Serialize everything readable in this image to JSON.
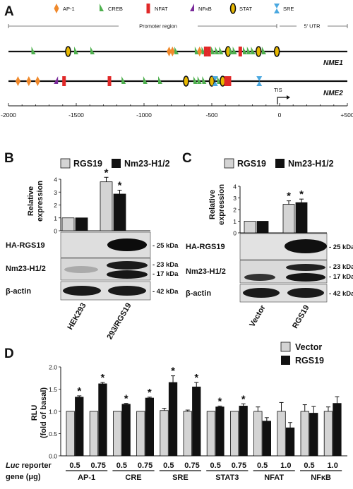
{
  "panelA": {
    "letter": "A",
    "legend": [
      {
        "label": "AP-1",
        "shape": "diamond",
        "color": "#f0892b"
      },
      {
        "label": "CREB",
        "shape": "tri-right",
        "color": "#4fb04f"
      },
      {
        "label": "NFAT",
        "shape": "rect",
        "color": "#e02828"
      },
      {
        "label": "NFκB",
        "shape": "tri-left",
        "color": "#7a2a9a"
      },
      {
        "label": "STAT",
        "shape": "ellipse",
        "color": "#e8b800"
      },
      {
        "label": "SRE",
        "shape": "bowtie",
        "color": "#4aa8e0"
      }
    ],
    "region_promoter": "Promoter region",
    "region_utr": "5' UTR",
    "gene1": "NME1",
    "gene2": "NME2",
    "tis": "TIS",
    "axis_ticks": [
      "-2000",
      "-1500",
      "-1000",
      "-500",
      "0",
      "+500"
    ],
    "nme1_sites": [
      {
        "pos": -1815,
        "type": "tri-right"
      },
      {
        "pos": -1560,
        "type": "ellipse"
      },
      {
        "pos": -1500,
        "type": "tri-right"
      },
      {
        "pos": -1380,
        "type": "tri-right"
      },
      {
        "pos": -815,
        "type": "diamond"
      },
      {
        "pos": -790,
        "type": "diamond"
      },
      {
        "pos": -760,
        "type": "tri-right"
      },
      {
        "pos": -610,
        "type": "tri-right"
      },
      {
        "pos": -590,
        "type": "diamond"
      },
      {
        "pos": -560,
        "type": "tri-right"
      },
      {
        "pos": -545,
        "type": "rect"
      },
      {
        "pos": -520,
        "type": "rect"
      },
      {
        "pos": -490,
        "type": "tri-right"
      },
      {
        "pos": -460,
        "type": "tri-right"
      },
      {
        "pos": -430,
        "type": "tri-right"
      },
      {
        "pos": -380,
        "type": "ellipse"
      },
      {
        "pos": -355,
        "type": "tri-right"
      },
      {
        "pos": -330,
        "type": "tri-right"
      },
      {
        "pos": -290,
        "type": "rect"
      },
      {
        "pos": -255,
        "type": "tri-right"
      },
      {
        "pos": -225,
        "type": "tri-right"
      },
      {
        "pos": -195,
        "type": "tri-right"
      },
      {
        "pos": -155,
        "type": "ellipse"
      },
      {
        "pos": -115,
        "type": "tri-right"
      },
      {
        "pos": -20,
        "type": "ellipse"
      }
    ],
    "nme2_sites": [
      {
        "pos": -1930,
        "type": "diamond"
      },
      {
        "pos": -1850,
        "type": "diamond"
      },
      {
        "pos": -1785,
        "type": "diamond"
      },
      {
        "pos": -1650,
        "type": "tri-left"
      },
      {
        "pos": -1590,
        "type": "rect"
      },
      {
        "pos": -1255,
        "type": "rect"
      },
      {
        "pos": -1150,
        "type": "tri-right"
      },
      {
        "pos": -990,
        "type": "tri-right"
      },
      {
        "pos": -880,
        "type": "tri-right"
      },
      {
        "pos": -690,
        "type": "ellipse"
      },
      {
        "pos": -620,
        "type": "tri-right"
      },
      {
        "pos": -590,
        "type": "tri-right"
      },
      {
        "pos": -555,
        "type": "tri-right"
      },
      {
        "pos": -500,
        "type": "ellipse"
      },
      {
        "pos": -475,
        "type": "bowtie"
      },
      {
        "pos": -445,
        "type": "tri-right"
      },
      {
        "pos": -420,
        "type": "ellipse"
      },
      {
        "pos": -395,
        "type": "rect"
      },
      {
        "pos": -370,
        "type": "rect"
      },
      {
        "pos": -150,
        "type": "bowtie"
      }
    ]
  },
  "panelB": {
    "letter": "B",
    "legend1": "RGS19",
    "legend2": "Nm23-H1/2",
    "ylabel1": "Relative",
    "ylabel2": "expression",
    "yticks": [
      "0",
      "1",
      "2",
      "3",
      "4"
    ],
    "blot1": "HA-RGS19",
    "blot2": "Nm23-H1/2",
    "blot3": "β-actin",
    "kda1": "- 25 kDa",
    "kda2": "- 23 kDa",
    "kda3": "- 17 kDa",
    "kda4": "- 42 kDa",
    "lane1": "HEK293",
    "lane2": "293/RGS19"
  },
  "panelC": {
    "letter": "C",
    "legend1": "RGS19",
    "legend2": "Nm23-H1/2",
    "ylabel1": "Relative",
    "ylabel2": "expression",
    "yticks": [
      "0",
      "1",
      "2",
      "3",
      "4"
    ],
    "blot1": "HA-RGS19",
    "blot2": "Nm23-H1/2",
    "blot3": "β-actin",
    "kda1": "- 25 kDa",
    "kda2": "- 23 kDa",
    "kda3": "- 17 kDa",
    "kda4": "- 42 kDa",
    "lane1": "Vector",
    "lane2": "RGS19"
  },
  "panelD": {
    "letter": "D",
    "legend1": "Vector",
    "legend2": "RGS19",
    "ylabel1": "RLU",
    "ylabel2": "(fold of basal)",
    "yticks": [
      "0.0",
      "0.5",
      "1.0",
      "1.5",
      "2.0"
    ],
    "luc_label": "Luc",
    "luc_rest": " reporter",
    "gene_ug": "gene (μg)",
    "star": "*"
  },
  "chart_data": [
    {
      "type": "bar",
      "panel": "B",
      "categories": [
        "HEK293",
        "293/RGS19"
      ],
      "series": [
        {
          "name": "RGS19",
          "values": [
            1.0,
            3.8
          ],
          "errors": [
            0,
            0.35
          ]
        },
        {
          "name": "Nm23-H1/2",
          "values": [
            1.0,
            2.85
          ],
          "errors": [
            0,
            0.3
          ]
        }
      ],
      "significant": [
        [
          false,
          true
        ],
        [
          false,
          true
        ]
      ],
      "ylim": [
        0,
        4
      ]
    },
    {
      "type": "bar",
      "panel": "C",
      "categories": [
        "Vector",
        "RGS19"
      ],
      "series": [
        {
          "name": "RGS19",
          "values": [
            1.0,
            2.45
          ],
          "errors": [
            0,
            0.3
          ]
        },
        {
          "name": "Nm23-H1/2",
          "values": [
            1.0,
            2.6
          ],
          "errors": [
            0,
            0.3
          ]
        }
      ],
      "significant": [
        [
          false,
          true
        ],
        [
          false,
          true
        ]
      ],
      "ylim": [
        0,
        4
      ]
    },
    {
      "type": "bar",
      "panel": "D",
      "categories": [
        "0.5",
        "0.75",
        "0.5",
        "0.75",
        "0.5",
        "0.75",
        "0.5",
        "0.75",
        "0.5",
        "1.0",
        "0.5",
        "1.0"
      ],
      "groups": [
        "AP-1",
        "CRE",
        "SRE",
        "STAT3",
        "NFAT",
        "NFκB"
      ],
      "series": [
        {
          "name": "Vector",
          "values": [
            1.0,
            1.0,
            1.0,
            1.0,
            1.02,
            1.0,
            1.0,
            1.0,
            1.0,
            1.0,
            1.0,
            1.0
          ],
          "errors": [
            0,
            0,
            0,
            0,
            0.05,
            0.03,
            0,
            0,
            0.1,
            0.2,
            0.15,
            0.1
          ]
        },
        {
          "name": "RGS19",
          "values": [
            1.32,
            1.62,
            1.16,
            1.3,
            1.65,
            1.55,
            1.1,
            1.12,
            0.78,
            0.63,
            0.96,
            1.18
          ],
          "errors": [
            0.03,
            0.03,
            0.02,
            0.02,
            0.15,
            0.1,
            0.02,
            0.05,
            0.08,
            0.12,
            0.15,
            0.15
          ]
        }
      ],
      "significant": [
        true,
        true,
        true,
        true,
        true,
        true,
        true,
        true,
        false,
        false,
        false,
        false
      ],
      "ylim": [
        0,
        2.0
      ]
    }
  ]
}
